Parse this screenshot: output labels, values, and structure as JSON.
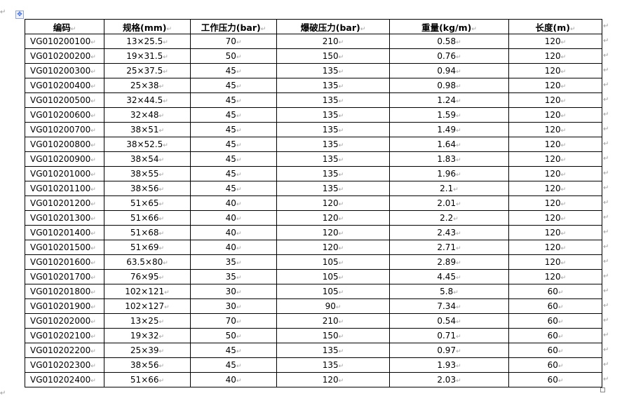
{
  "table": {
    "headers": [
      "编码",
      "规格(mm)",
      "工作压力(bar)",
      "爆破压力(bar)",
      "重量(kg/m)",
      "长度(m)"
    ],
    "rows": [
      [
        "VG010200100",
        "13×25.5",
        "70",
        "210",
        "0.58",
        "120"
      ],
      [
        "VG010200200",
        "19×31.5",
        "50",
        "150",
        "0.76",
        "120"
      ],
      [
        "VG010200300",
        "25×37.5",
        "45",
        "135",
        "0.94",
        "120"
      ],
      [
        "VG010200400",
        "25×38",
        "45",
        "135",
        "0.98",
        "120"
      ],
      [
        "VG010200500",
        "32×44.5",
        "45",
        "135",
        "1.24",
        "120"
      ],
      [
        "VG010200600",
        "32×48",
        "45",
        "135",
        "1.59",
        "120"
      ],
      [
        "VG010200700",
        "38×51",
        "45",
        "135",
        "1.49",
        "120"
      ],
      [
        "VG010200800",
        "38×52.5",
        "45",
        "135",
        "1.64",
        "120"
      ],
      [
        "VG010200900",
        "38×54",
        "45",
        "135",
        "1.83",
        "120"
      ],
      [
        "VG010201000",
        "38×55",
        "45",
        "135",
        "1.96",
        "120"
      ],
      [
        "VG010201100",
        "38×56",
        "45",
        "135",
        "2.1",
        "120"
      ],
      [
        "VG010201200",
        "51×65",
        "40",
        "120",
        "2.01",
        "120"
      ],
      [
        "VG010201300",
        "51×66",
        "40",
        "120",
        "2.2",
        "120"
      ],
      [
        "VG010201400",
        "51×68",
        "40",
        "120",
        "2.43",
        "120"
      ],
      [
        "VG010201500",
        "51×69",
        "40",
        "120",
        "2.71",
        "120"
      ],
      [
        "VG010201600",
        "63.5×80",
        "35",
        "105",
        "2.89",
        "120"
      ],
      [
        "VG010201700",
        "76×95",
        "35",
        "105",
        "4.45",
        "120"
      ],
      [
        "VG010201800",
        "102×121",
        "30",
        "105",
        "5.8",
        "60"
      ],
      [
        "VG010201900",
        "102×127",
        "30",
        "90",
        "7.34",
        "60"
      ],
      [
        "VG010202000",
        "13×25",
        "70",
        "210",
        "0.54",
        "60"
      ],
      [
        "VG010202100",
        "19×32",
        "50",
        "150",
        "0.71",
        "60"
      ],
      [
        "VG010202200",
        "25×39",
        "45",
        "135",
        "0.97",
        "60"
      ],
      [
        "VG010202300",
        "38×56",
        "45",
        "135",
        "1.93",
        "60"
      ],
      [
        "VG010202400",
        "51×66",
        "40",
        "120",
        "2.03",
        "60"
      ]
    ]
  }
}
